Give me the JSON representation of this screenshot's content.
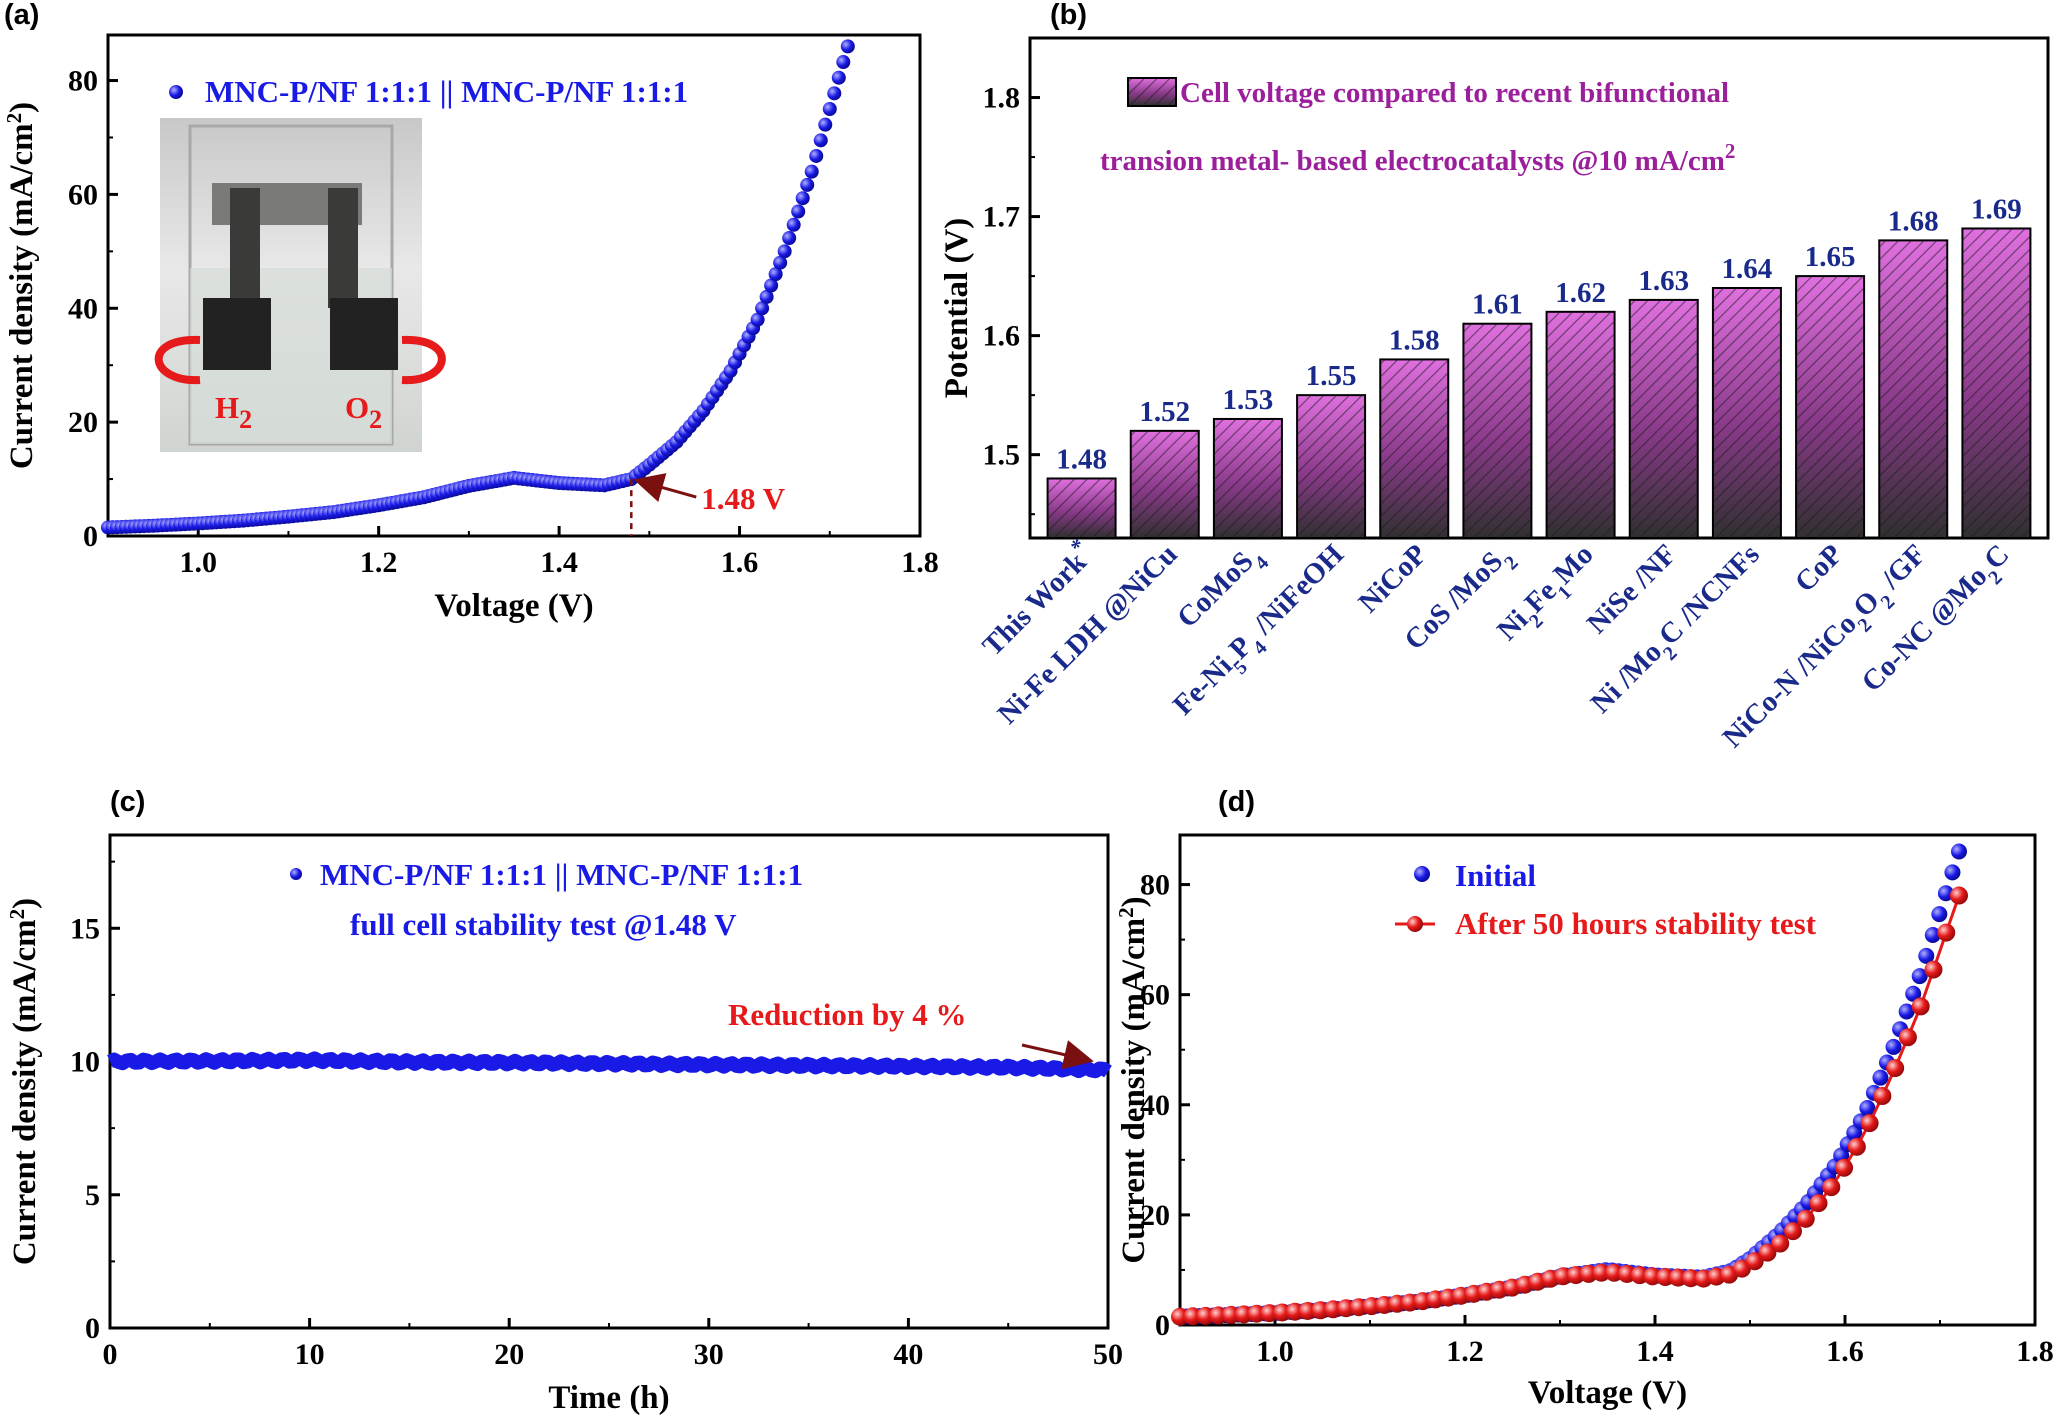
{
  "panels": [
    {
      "id": "a",
      "label": "(a)"
    },
    {
      "id": "b",
      "label": "(b)"
    },
    {
      "id": "c",
      "label": "(c)"
    },
    {
      "id": "d",
      "label": "(d)"
    }
  ],
  "colors": {
    "blue": "#1a1ae6",
    "red": "#e61a1a",
    "purple": "#9b1e9b",
    "bar_top": "#d95cd9",
    "bar_bottom": "#333333",
    "value_label": "#1a2a8a",
    "highlight": "#e8237a",
    "dark_red": "#7a1010"
  },
  "chart_data": [
    {
      "panel": "a",
      "type": "scatter",
      "xlabel": "Voltage (V)",
      "ylabel": "Current density (mA/cm2)",
      "xlim": [
        0.9,
        1.8
      ],
      "ylim": [
        0,
        88
      ],
      "xticks": [
        "1.0",
        "1.2",
        "1.4",
        "1.6",
        "1.8"
      ],
      "yticks": [
        "0",
        "20",
        "40",
        "60",
        "80"
      ],
      "series": [
        {
          "name": "MNC-P/NF 1:1:1 || MNC-P/NF 1:1:1",
          "color": "#1a1ae6",
          "x": [
            0.9,
            0.95,
            1.0,
            1.05,
            1.1,
            1.15,
            1.2,
            1.25,
            1.3,
            1.35,
            1.4,
            1.45,
            1.48,
            1.5,
            1.53,
            1.56,
            1.59,
            1.62,
            1.65,
            1.68,
            1.7,
            1.72
          ],
          "y": [
            1.5,
            1.8,
            2.2,
            2.7,
            3.4,
            4.2,
            5.4,
            6.8,
            8.8,
            10.2,
            9.3,
            8.9,
            10.0,
            12.5,
            16.5,
            22.0,
            29.0,
            38.0,
            50.0,
            64.0,
            75.0,
            86.0
          ]
        }
      ],
      "annotations": [
        {
          "text": "1.48 V",
          "x": 1.48,
          "y": 10
        }
      ],
      "inset_labels": {
        "left": "H",
        "left_sub": "2",
        "right": "O",
        "right_sub": "2"
      },
      "ytitle_parts": {
        "main": "Current density (mA/cm",
        "sup": "2",
        "end": ")"
      }
    },
    {
      "panel": "b",
      "type": "bar",
      "ylabel": "Potential (V)",
      "ylim": [
        1.43,
        1.85
      ],
      "yticks": [
        "1.5",
        "1.6",
        "1.7",
        "1.8"
      ],
      "title_line1": "Cell voltage compared to recent bifunctional",
      "title_line2": "transion metal- based electrocatalysts @10 mA/cm",
      "title_sup": "2",
      "categories": [
        {
          "parts": [
            [
              "This Work",
              ""
            ],
            [
              "*",
              "sup"
            ]
          ],
          "highlight": true
        },
        {
          "parts": [
            [
              "Ni-Fe LDH @NiCu",
              ""
            ]
          ]
        },
        {
          "parts": [
            [
              "CoMoS",
              ""
            ],
            [
              "4",
              "sub"
            ]
          ]
        },
        {
          "parts": [
            [
              "Fe-Ni",
              ""
            ],
            [
              "5",
              "sub"
            ],
            [
              "P",
              ""
            ],
            [
              "4",
              "sub"
            ],
            [
              " /NiFeOH",
              ""
            ]
          ]
        },
        {
          "parts": [
            [
              "NiCoP",
              ""
            ]
          ]
        },
        {
          "parts": [
            [
              "CoS /MoS",
              ""
            ],
            [
              "2",
              "sub"
            ]
          ]
        },
        {
          "parts": [
            [
              "Ni",
              ""
            ],
            [
              "2",
              "sub"
            ],
            [
              "Fe",
              ""
            ],
            [
              "1",
              "sub"
            ],
            [
              "Mo",
              ""
            ]
          ]
        },
        {
          "parts": [
            [
              "NiSe /NF",
              ""
            ]
          ]
        },
        {
          "parts": [
            [
              "Ni /Mo",
              ""
            ],
            [
              "2",
              "sub"
            ],
            [
              "C /NCNFs",
              ""
            ]
          ]
        },
        {
          "parts": [
            [
              "CoP",
              ""
            ]
          ]
        },
        {
          "parts": [
            [
              "NiCo-N /NiCo",
              ""
            ],
            [
              "2",
              "sub"
            ],
            [
              "O",
              ""
            ],
            [
              "2",
              "sub"
            ],
            [
              " /GF",
              ""
            ]
          ]
        },
        {
          "parts": [
            [
              "Co-NC @Mo",
              ""
            ],
            [
              "2",
              "sub"
            ],
            [
              "C",
              ""
            ]
          ]
        }
      ],
      "values": [
        1.48,
        1.52,
        1.53,
        1.55,
        1.58,
        1.61,
        1.62,
        1.63,
        1.64,
        1.65,
        1.68,
        1.69
      ],
      "value_labels": [
        "1.48",
        "1.52",
        "1.53",
        "1.55",
        "1.58",
        "1.61",
        "1.62",
        "1.63",
        "1.64",
        "1.65",
        "1.68",
        "1.69"
      ]
    },
    {
      "panel": "c",
      "type": "line",
      "xlabel": "Time (h)",
      "ylabel": "Current density (mA/cm2)",
      "xlim": [
        0,
        50
      ],
      "ylim": [
        0,
        18.5
      ],
      "xticks": [
        "0",
        "10",
        "20",
        "30",
        "40",
        "50"
      ],
      "yticks": [
        "0",
        "5",
        "10",
        "15"
      ],
      "legend_line1": "MNC-P/NF 1:1:1 || MNC-P/NF 1:1:1",
      "legend_line2": "full cell stability test @1.48 V",
      "series": [
        {
          "name": "MNC-P/NF 1:1:1 || MNC-P/NF 1:1:1",
          "color": "#1a1ae6",
          "x": [
            0,
            5,
            10,
            15,
            20,
            25,
            30,
            35,
            40,
            45,
            50
          ],
          "y": [
            10.0,
            10.02,
            10.05,
            9.98,
            9.96,
            9.92,
            9.88,
            9.85,
            9.82,
            9.78,
            9.68
          ]
        }
      ],
      "annotations": [
        {
          "text": "Reduction by 4 %",
          "x": 50,
          "y": 9.68
        }
      ],
      "ytitle_parts": {
        "main": "Current density (mA/cm",
        "sup": "2",
        "end": ")"
      }
    },
    {
      "panel": "d",
      "type": "scatter",
      "xlabel": "Voltage (V)",
      "ylabel": "Current density (mA/cm2)",
      "xlim": [
        0.9,
        1.8
      ],
      "ylim": [
        0,
        89
      ],
      "xticks": [
        "1.0",
        "1.2",
        "1.4",
        "1.6",
        "1.8"
      ],
      "yticks": [
        "0",
        "20",
        "40",
        "60",
        "80"
      ],
      "series": [
        {
          "name": "Initial",
          "color": "#1a1ae6",
          "x": [
            0.9,
            0.95,
            1.0,
            1.05,
            1.1,
            1.15,
            1.2,
            1.25,
            1.3,
            1.35,
            1.4,
            1.45,
            1.48,
            1.5,
            1.53,
            1.56,
            1.59,
            1.62,
            1.65,
            1.68,
            1.7,
            1.72
          ],
          "y": [
            1.5,
            1.8,
            2.2,
            2.7,
            3.4,
            4.2,
            5.4,
            6.8,
            8.8,
            10.0,
            9.0,
            8.6,
            9.8,
            12.0,
            16.5,
            22.0,
            29.0,
            38.0,
            50.0,
            64.0,
            75.0,
            86.0
          ]
        },
        {
          "name": "After 50 hours stability test",
          "color": "#e61a1a",
          "x": [
            0.9,
            0.95,
            1.0,
            1.05,
            1.1,
            1.15,
            1.2,
            1.25,
            1.3,
            1.35,
            1.4,
            1.45,
            1.48,
            1.5,
            1.53,
            1.56,
            1.59,
            1.62,
            1.65,
            1.68,
            1.7,
            1.72
          ],
          "y": [
            1.5,
            1.8,
            2.2,
            2.7,
            3.4,
            4.2,
            5.4,
            6.8,
            8.8,
            9.6,
            8.8,
            8.4,
            9.2,
            11.0,
            14.5,
            19.5,
            26.0,
            34.5,
            45.5,
            58.0,
            68.0,
            78.0
          ]
        }
      ],
      "ytitle_parts": {
        "main": "Current density (mA/cm",
        "sup": "2",
        "end": ")"
      }
    }
  ]
}
